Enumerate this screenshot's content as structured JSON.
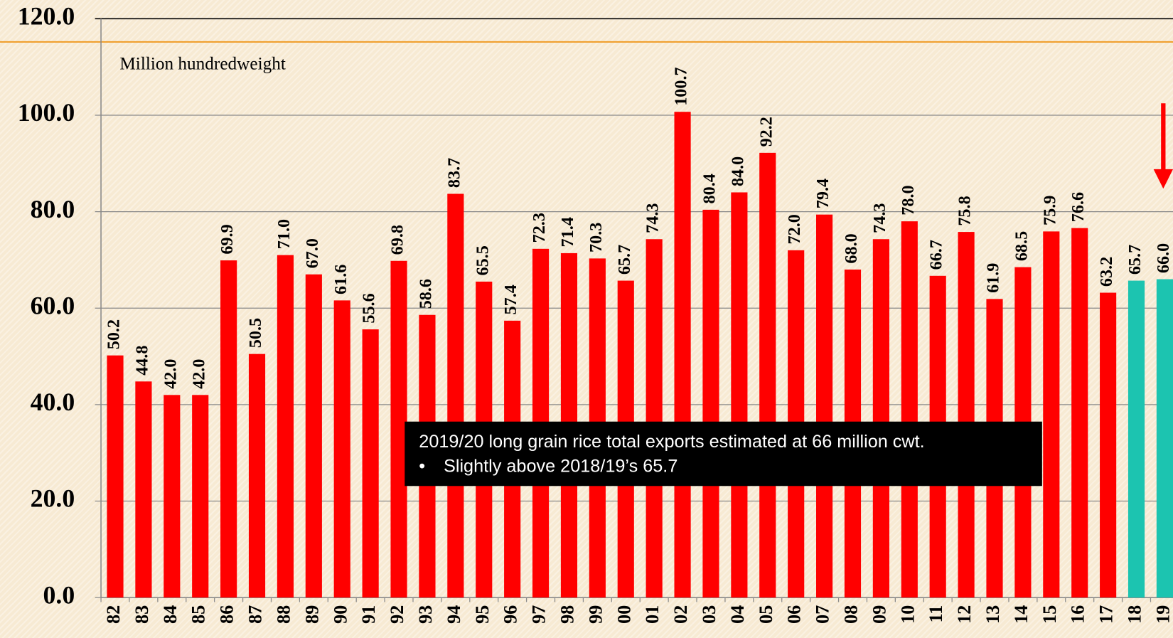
{
  "chart_data": {
    "type": "bar",
    "y_unit_label": "Million hundredweight",
    "categories": [
      "82",
      "83",
      "84",
      "85",
      "86",
      "87",
      "88",
      "89",
      "90",
      "91",
      "92",
      "93",
      "94",
      "95",
      "96",
      "97",
      "98",
      "99",
      "00",
      "01",
      "02",
      "03",
      "04",
      "05",
      "06",
      "07",
      "08",
      "09",
      "10",
      "11",
      "12",
      "13",
      "14",
      "15",
      "16",
      "17",
      "18",
      "19"
    ],
    "values": [
      50.2,
      44.8,
      42.0,
      42.0,
      69.9,
      50.5,
      71.0,
      67.0,
      61.6,
      55.6,
      69.8,
      58.6,
      83.7,
      65.5,
      57.4,
      72.3,
      71.4,
      70.3,
      65.7,
      74.3,
      100.7,
      80.4,
      84.0,
      92.2,
      72.0,
      79.4,
      68.0,
      74.3,
      78.0,
      66.7,
      75.8,
      61.9,
      68.5,
      75.9,
      76.6,
      63.2,
      65.7,
      66.0
    ],
    "value_labels": [
      "50.2",
      "44.8",
      "42.0",
      "42.0",
      "69.9",
      "50.5",
      "71.0",
      "67.0",
      "61.6",
      "55.6",
      "69.8",
      "58.6",
      "83.7",
      "65.5",
      "57.4",
      "72.3",
      "71.4",
      "70.3",
      "65.7",
      "74.3",
      "100.7",
      "80.4",
      "84.0",
      "92.2",
      "72.0",
      "79.4",
      "68.0",
      "74.3",
      "78.0",
      "66.7",
      "75.8",
      "61.9",
      "68.5",
      "75.9",
      "76.6",
      "63.2",
      "65.7",
      "66.0"
    ],
    "colors": [
      "#ff0000",
      "#ff0000",
      "#ff0000",
      "#ff0000",
      "#ff0000",
      "#ff0000",
      "#ff0000",
      "#ff0000",
      "#ff0000",
      "#ff0000",
      "#ff0000",
      "#ff0000",
      "#ff0000",
      "#ff0000",
      "#ff0000",
      "#ff0000",
      "#ff0000",
      "#ff0000",
      "#ff0000",
      "#ff0000",
      "#ff0000",
      "#ff0000",
      "#ff0000",
      "#ff0000",
      "#ff0000",
      "#ff0000",
      "#ff0000",
      "#ff0000",
      "#ff0000",
      "#ff0000",
      "#ff0000",
      "#ff0000",
      "#ff0000",
      "#ff0000",
      "#ff0000",
      "#ff0000",
      "#1cc4b0",
      "#1cc4b0"
    ],
    "ylim": [
      0,
      120
    ],
    "yticks": [
      {
        "value": 0,
        "label": "0.0"
      },
      {
        "value": 20,
        "label": "20.0"
      },
      {
        "value": 40,
        "label": "40.0"
      },
      {
        "value": 60,
        "label": "60.0"
      },
      {
        "value": 80,
        "label": "80.0"
      },
      {
        "value": 100,
        "label": "100.0"
      },
      {
        "value": 120,
        "label": "120.0"
      }
    ],
    "grid": true,
    "annotation": {
      "lines": [
        "2019/20 long grain rice total exports estimated at 66 million cwt.",
        "Slightly above 2018/19’s 65.7"
      ]
    }
  }
}
